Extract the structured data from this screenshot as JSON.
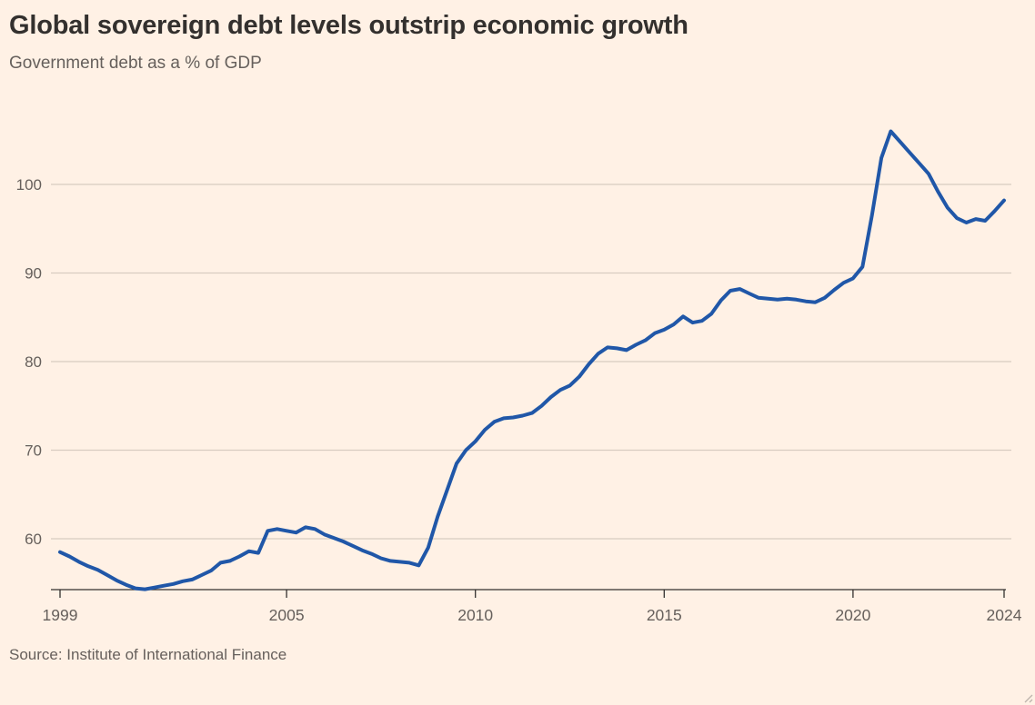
{
  "header": {
    "title": "Global sovereign debt levels outstrip economic growth",
    "subtitle": "Government debt as a % of GDP"
  },
  "footer": {
    "source": "Source: Institute of International Finance"
  },
  "colors": {
    "background": "#FFF1E5",
    "line": "#2057A8",
    "grid": "#D8CCC1",
    "axis": "#33302E",
    "text_muted": "#66605C",
    "title_text": "#33302E"
  },
  "chart_data": {
    "type": "line",
    "title": "Global sovereign debt levels outstrip economic growth",
    "subtitle": "Government debt as a % of GDP",
    "source": "Institute of International Finance",
    "xlabel": "",
    "ylabel": "Government debt as a % of GDP",
    "xticks": [
      1999,
      2005,
      2010,
      2015,
      2020,
      2024
    ],
    "yticks": [
      60,
      70,
      80,
      90,
      100
    ],
    "xlim": [
      1999,
      2024
    ],
    "ylim": [
      54.2,
      107.8
    ],
    "grid": "horizontal",
    "legend": "none",
    "series": [
      {
        "name": "Government debt as a % of GDP",
        "x_start": 1999,
        "x_step": 0.25,
        "values": [
          58.5,
          58.0,
          57.4,
          56.9,
          56.5,
          55.9,
          55.3,
          54.8,
          54.4,
          54.3,
          54.5,
          54.7,
          54.9,
          55.2,
          55.4,
          55.9,
          56.4,
          57.3,
          57.5,
          58.0,
          58.6,
          58.4,
          60.9,
          61.1,
          60.9,
          60.7,
          61.3,
          61.1,
          60.5,
          60.1,
          59.7,
          59.2,
          58.7,
          58.3,
          57.8,
          57.5,
          57.4,
          57.3,
          57.0,
          59.0,
          62.5,
          65.5,
          68.5,
          70.0,
          71.0,
          72.3,
          73.2,
          73.6,
          73.7,
          73.9,
          74.2,
          75.0,
          76.0,
          76.8,
          77.3,
          78.3,
          79.7,
          80.9,
          81.6,
          81.5,
          81.3,
          81.9,
          82.4,
          83.2,
          83.6,
          84.2,
          85.1,
          84.4,
          84.6,
          85.4,
          86.9,
          88.0,
          88.2,
          87.7,
          87.2,
          87.1,
          87.0,
          87.1,
          87.0,
          86.8,
          86.7,
          87.2,
          88.1,
          88.9,
          89.4,
          90.7,
          96.5,
          103.0,
          106.0,
          104.8,
          103.6,
          102.4,
          101.2,
          99.2,
          97.4,
          96.2,
          95.7,
          96.1,
          95.9,
          97.0,
          98.2
        ]
      }
    ]
  }
}
